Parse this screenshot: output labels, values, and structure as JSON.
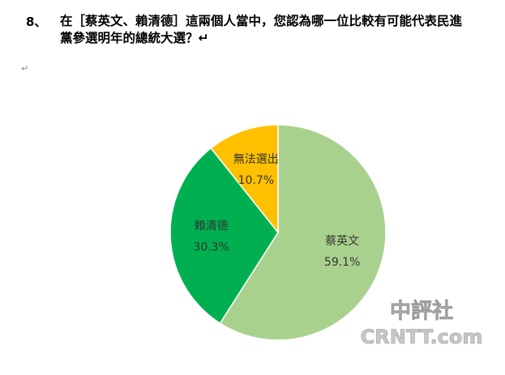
{
  "chart_data": {
    "type": "pie",
    "question_number": "8、",
    "title": "在［蔡英文、賴清德］這兩個人當中，您認為哪一位比較有可能代表民進黨參選明年的總統大選？↵",
    "paragraph_mark": "↵",
    "categories": [
      "蔡英文",
      "賴清德",
      "無法選出"
    ],
    "values": [
      59.1,
      30.3,
      10.7
    ],
    "value_labels": [
      "59.1%",
      "30.3%",
      "10.7%"
    ],
    "colors": [
      "#a9d18e",
      "#00b050",
      "#ffc000"
    ],
    "watermark": [
      "中評社",
      "CRNTT.com"
    ]
  }
}
